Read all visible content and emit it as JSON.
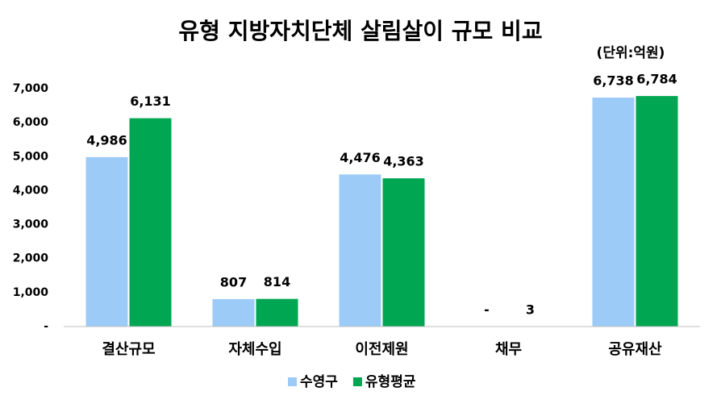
{
  "chart_data": {
    "type": "bar",
    "title": "유형 지방자치단체 살림살이 규모 비교",
    "subtitle": "(단위:억원)",
    "categories": [
      "결산규모",
      "자체수입",
      "이전제원",
      "채무",
      "공유재산"
    ],
    "series": [
      {
        "name": "수영구",
        "color": "#9dcbf7",
        "values": [
          4986,
          807,
          4476,
          0,
          6738
        ],
        "value_labels": [
          "4,986",
          "807",
          "4,476",
          "-",
          "6,738"
        ]
      },
      {
        "name": "유형평균",
        "color": "#00a651",
        "values": [
          6131,
          814,
          4363,
          3,
          6784
        ],
        "value_labels": [
          "6,131",
          "814",
          "4,363",
          "3",
          "6,784"
        ]
      }
    ],
    "ylim": [
      0,
      7000
    ],
    "yticks": [
      {
        "value": 0,
        "label": "-"
      },
      {
        "value": 1000,
        "label": "1,000"
      },
      {
        "value": 2000,
        "label": "2,000"
      },
      {
        "value": 3000,
        "label": "3,000"
      },
      {
        "value": 4000,
        "label": "4,000"
      },
      {
        "value": 5000,
        "label": "5,000"
      },
      {
        "value": 6000,
        "label": "6,000"
      },
      {
        "value": 7000,
        "label": "7,000"
      }
    ],
    "grid": false,
    "legend": "bottom"
  }
}
